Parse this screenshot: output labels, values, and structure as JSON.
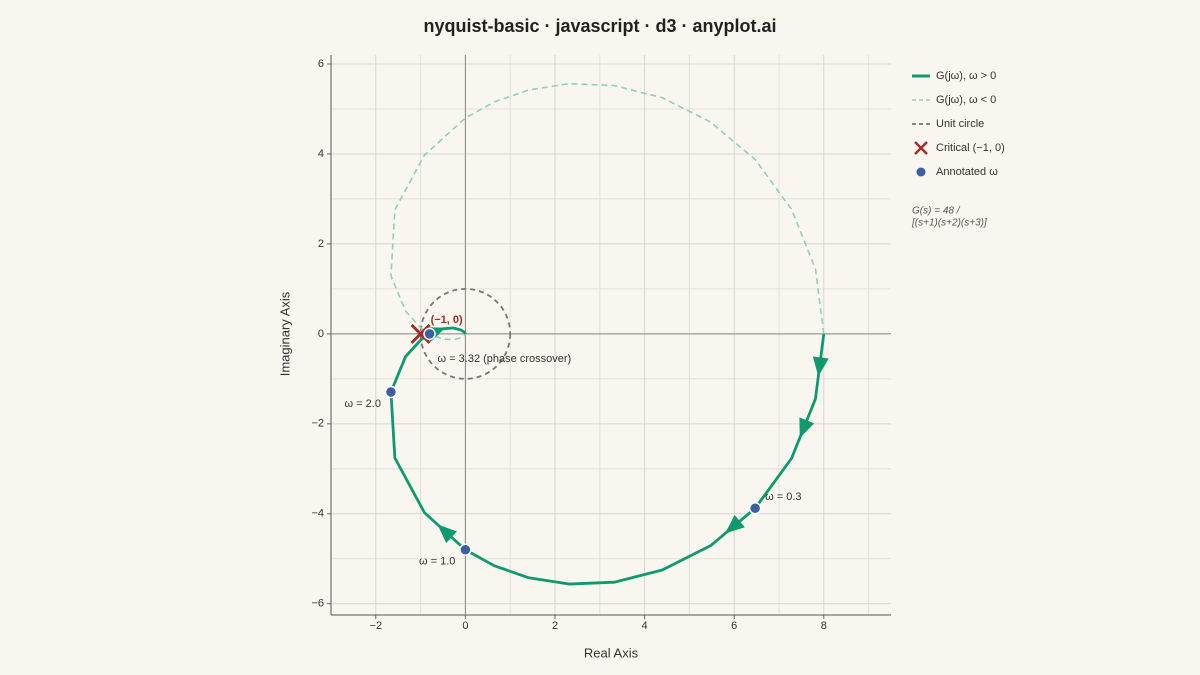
{
  "chart_data": {
    "type": "nyquist",
    "title": "nyquist-basic · javascript · d3 · anyplot.ai",
    "xlabel": "Real Axis",
    "ylabel": "Imaginary Axis",
    "xlim": [
      -3,
      9.5
    ],
    "ylim": [
      -6.25,
      6.2
    ],
    "xticks": [
      {
        "value": -2,
        "label": "−2"
      },
      0,
      2,
      4,
      6,
      8
    ],
    "yticks": [
      {
        "value": -6,
        "label": "−6"
      },
      {
        "value": -4,
        "label": "−4"
      },
      {
        "value": -2,
        "label": "−2"
      },
      0,
      2,
      4,
      6
    ],
    "xminorticks": [
      -3,
      -1,
      1,
      3,
      5,
      7,
      9
    ],
    "yminorticks": [
      -5,
      -3,
      -1,
      1,
      3,
      5
    ],
    "grid": true,
    "series": [
      {
        "name": "G(jω), ω > 0",
        "color": "#0e9a6e",
        "style": "solid",
        "x": [
          8,
          7.813,
          7.279,
          6.467,
          5.473,
          4.395,
          3.321,
          2.313,
          1.413,
          0.641,
          0,
          -0.914,
          -1.575,
          -1.662,
          -1.334,
          -0.985,
          -0.8,
          -0.508,
          -0.27,
          -0.09,
          -0.025,
          -0.002,
          0
        ],
        "y": [
          0,
          -1.446,
          -2.77,
          -3.877,
          -4.709,
          -5.25,
          -5.521,
          -5.562,
          -5.423,
          -5.154,
          -4.8,
          -3.974,
          -2.757,
          -1.292,
          -0.503,
          -0.123,
          0,
          0.113,
          0.131,
          0.083,
          0.037,
          0.006,
          0
        ]
      },
      {
        "name": "G(jω), ω < 0",
        "color": "#8fd0b8",
        "style": "dashed",
        "x": [
          8,
          7.813,
          7.279,
          6.467,
          5.473,
          4.395,
          3.321,
          2.313,
          1.413,
          0.641,
          0,
          -0.914,
          -1.575,
          -1.662,
          -1.334,
          -0.985,
          -0.8,
          -0.508,
          -0.27,
          -0.09,
          -0.025,
          -0.002,
          0
        ],
        "y": [
          0,
          1.446,
          2.77,
          3.877,
          4.709,
          5.25,
          5.521,
          5.562,
          5.423,
          5.154,
          4.8,
          3.974,
          2.757,
          1.292,
          0.503,
          0.123,
          0,
          -0.113,
          -0.131,
          -0.083,
          -0.037,
          -0.006,
          0
        ]
      }
    ],
    "unit_circle": {
      "name": "Unit circle",
      "color": "#777777",
      "center": [
        0,
        0
      ],
      "radius": 1
    },
    "critical": {
      "name": "Critical (−1, 0)",
      "label": "(−1, 0)",
      "color": "#a52a2a",
      "x": -1,
      "y": 0
    },
    "annotated": {
      "name": "Annotated ω",
      "color": "#3b5fa0",
      "x": [
        6.467,
        0,
        -1.662,
        -0.8
      ],
      "y": [
        -3.877,
        -4.8,
        -1.292,
        0
      ],
      "labels": [
        "ω = 0.3",
        "ω = 1.0",
        "ω = 2.0",
        "ω = 3.32 (phase crossover)"
      ]
    },
    "transfer_function": [
      "G(s) = 48 /",
      "[(s+1)(s+2)(s+3)]"
    ]
  }
}
